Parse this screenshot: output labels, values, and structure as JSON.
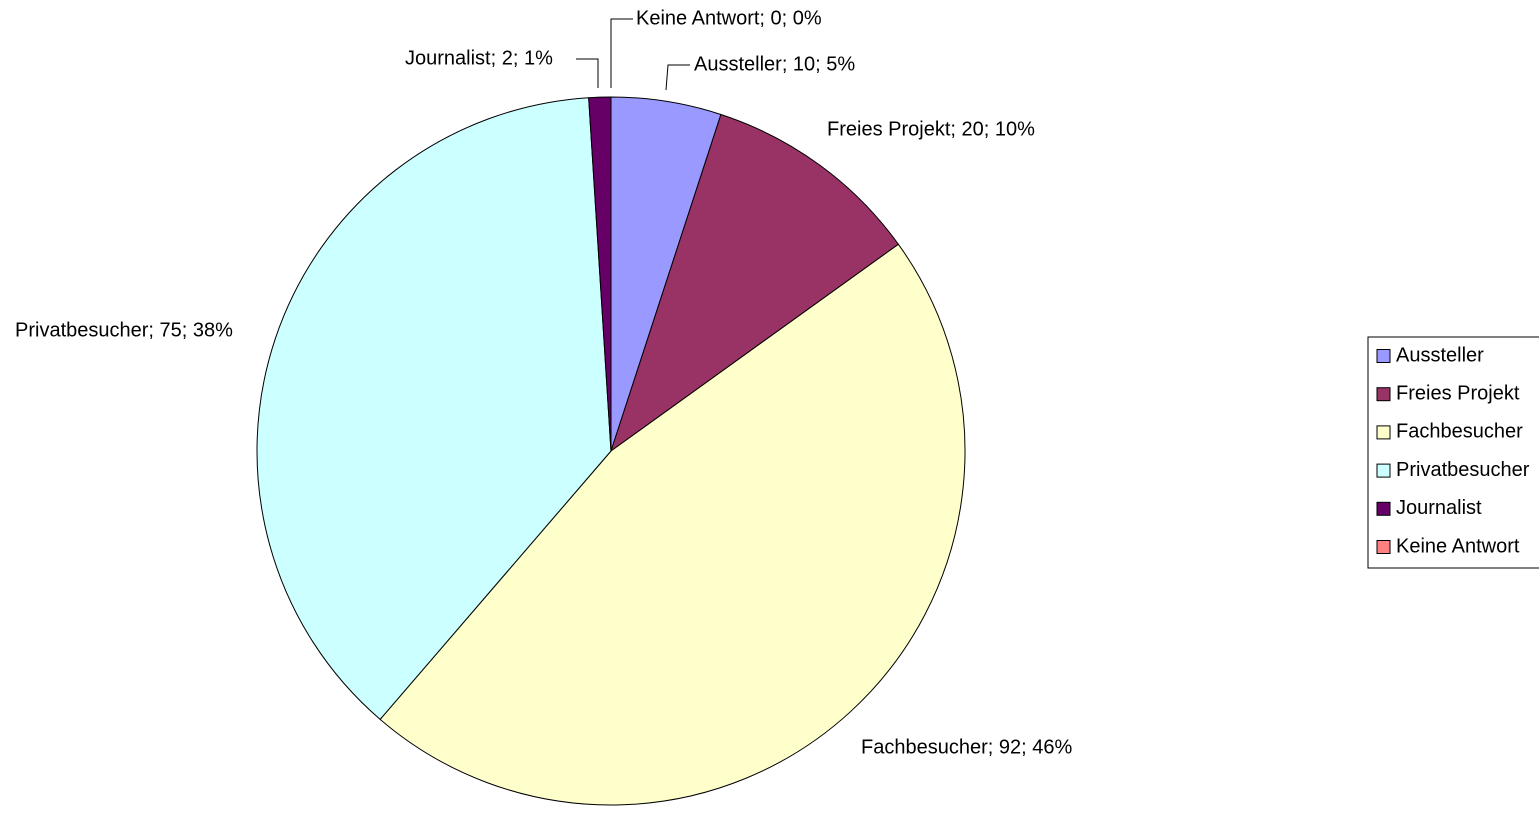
{
  "chart_data": {
    "type": "pie",
    "categories": [
      "Aussteller",
      "Freies Projekt",
      "Fachbesucher",
      "Privatbesucher",
      "Journalist",
      "Keine Antwort"
    ],
    "values": [
      10,
      20,
      92,
      75,
      2,
      0
    ],
    "value_labels": [
      "Aussteller; 10; 5%",
      "Freies Projekt; 20; 10%",
      "Fachbesucher; 92; 46%",
      "Privatbesucher; 75; 38%",
      "Journalist; 2; 1%",
      "Keine Antwort; 0; 0%"
    ],
    "colors": [
      "#9999ff",
      "#993366",
      "#ffffcc",
      "#ccffff",
      "#660066",
      "#ff8080"
    ],
    "legend": "right"
  }
}
